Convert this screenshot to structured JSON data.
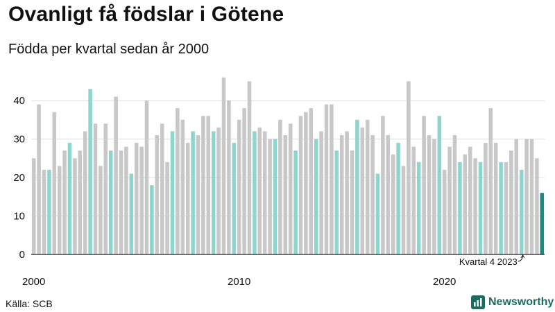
{
  "title": "Ovanligt få födslar i Götene",
  "subtitle": "Födda per kvartal sedan år 2000",
  "source": "Källa: SCB",
  "brand": {
    "name": "Newsworthy",
    "icon": "newsworthy-logo-icon"
  },
  "colors": {
    "default_bar": "#c8c8c8",
    "q4_bar": "#8dd6cd",
    "current_bar": "#1e8a7e",
    "gridline": "#dddddd",
    "axis": "#222222",
    "brand": "#1a6b62"
  },
  "chart_data": {
    "type": "bar",
    "title": "Ovanligt få födslar i Götene",
    "subtitle": "Födda per kvartal sedan år 2000",
    "xlabel": "",
    "ylabel": "",
    "ylim": [
      0,
      48
    ],
    "yticks": [
      0,
      10,
      20,
      30,
      40
    ],
    "grid": true,
    "start_year": 2000,
    "quarters_per_year": 4,
    "x_tick_labels": [
      {
        "label": "2000",
        "index": 0
      },
      {
        "label": "2010",
        "index": 40
      },
      {
        "label": "2020",
        "index": 80
      }
    ],
    "highlight_rule": "Quarter 4 of each year highlighted; latest quarter in dark green",
    "values": [
      25,
      39,
      22,
      22,
      37,
      23,
      27,
      29,
      25,
      27,
      32,
      43,
      34,
      23,
      34,
      27,
      41,
      27,
      28,
      21,
      29,
      28,
      40,
      18,
      31,
      34,
      24,
      32,
      38,
      35,
      29,
      32,
      31,
      36,
      36,
      32,
      33,
      46,
      40,
      29,
      35,
      38,
      45,
      32,
      33,
      32,
      30,
      30,
      35,
      31,
      34,
      27,
      36,
      37,
      38,
      30,
      32,
      39,
      39,
      27,
      31,
      32,
      27,
      35,
      33,
      35,
      31,
      21,
      36,
      31,
      26,
      29,
      23,
      45,
      28,
      24,
      36,
      31,
      30,
      36,
      22,
      28,
      31,
      24,
      26,
      28,
      25,
      24,
      29,
      38,
      29,
      24,
      24,
      27,
      30,
      22,
      30,
      30,
      25,
      16
    ],
    "annotation": {
      "text": "Kvartal 4 2023",
      "index": 95
    }
  }
}
